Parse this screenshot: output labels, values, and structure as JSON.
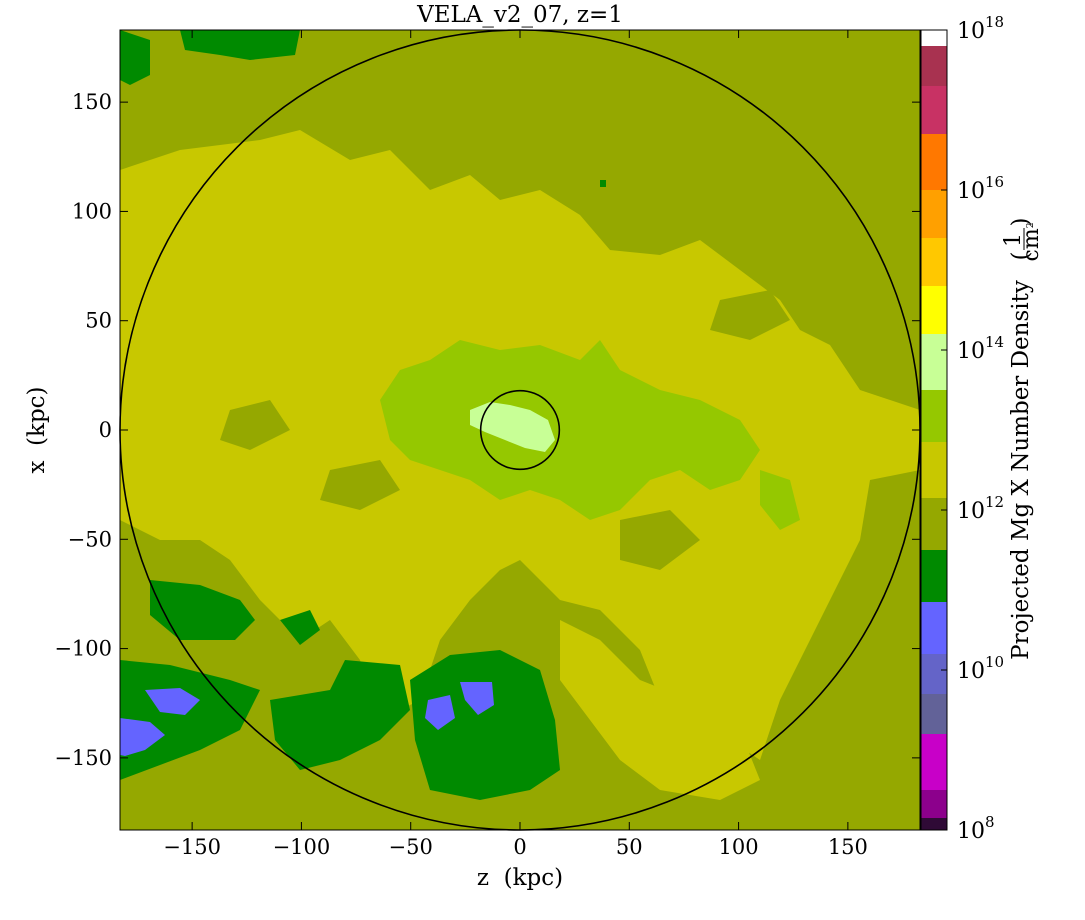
{
  "chart_data": {
    "type": "heatmap",
    "title": "VELA_v2_07, z=1",
    "xlabel": "z  (kpc)",
    "ylabel": "x  (kpc)",
    "xlim": [
      -183,
      183
    ],
    "ylim": [
      -183,
      183
    ],
    "x_ticks": [
      -150,
      -100,
      -50,
      0,
      50,
      100,
      150
    ],
    "y_ticks": [
      -150,
      -100,
      -50,
      0,
      50,
      100,
      150
    ],
    "x_tick_labels": [
      "−150",
      "−100",
      "−50",
      "0",
      "50",
      "100",
      "150"
    ],
    "y_tick_labels": [
      "−150",
      "−100",
      "−50",
      "0",
      "50",
      "100",
      "150"
    ],
    "circles_kpc": [
      {
        "center": [
          0,
          0
        ],
        "radius": 183
      },
      {
        "center": [
          0,
          0
        ],
        "radius": 18
      }
    ],
    "colorbar": {
      "label": "Projected Mg X Number Density",
      "unit_numerator": "1",
      "unit_denominator": "cm",
      "unit_denominator_exp": "2",
      "scale": "log",
      "range_log10": [
        8,
        18
      ],
      "tick_log10": [
        8,
        10,
        12,
        14,
        16,
        18
      ],
      "tick_base": "10",
      "tick_exponents": [
        "8",
        "10",
        "12",
        "14",
        "16",
        "18"
      ],
      "level_colors": [
        "#2f0a36",
        "#8c008c",
        "#c800c8",
        "#626298",
        "#6464c8",
        "#6464ff",
        "#008a00",
        "#95a800",
        "#c8c800",
        "#95c800",
        "#c8ff96",
        "#ffff00",
        "#ffc800",
        "#ffa000",
        "#ff7800",
        "#c83264",
        "#a83250",
        "#ffffff"
      ]
    },
    "map_regions": [
      {
        "name": "background",
        "level_log10": 11.75,
        "color": "#95a800"
      },
      {
        "name": "central-plateau",
        "level_log10": 12.5,
        "color": "#c8c800"
      },
      {
        "name": "inner-halo",
        "level_log10": 13.2,
        "color": "#95c800"
      },
      {
        "name": "galaxy-core",
        "level_log10": 13.8,
        "color": "#c8ff96"
      },
      {
        "name": "low-density-patches",
        "level_log10": 11.25,
        "color": "#008a00"
      },
      {
        "name": "lowest-density-patches",
        "level_log10": 10.75,
        "color": "#6464ff"
      }
    ]
  }
}
